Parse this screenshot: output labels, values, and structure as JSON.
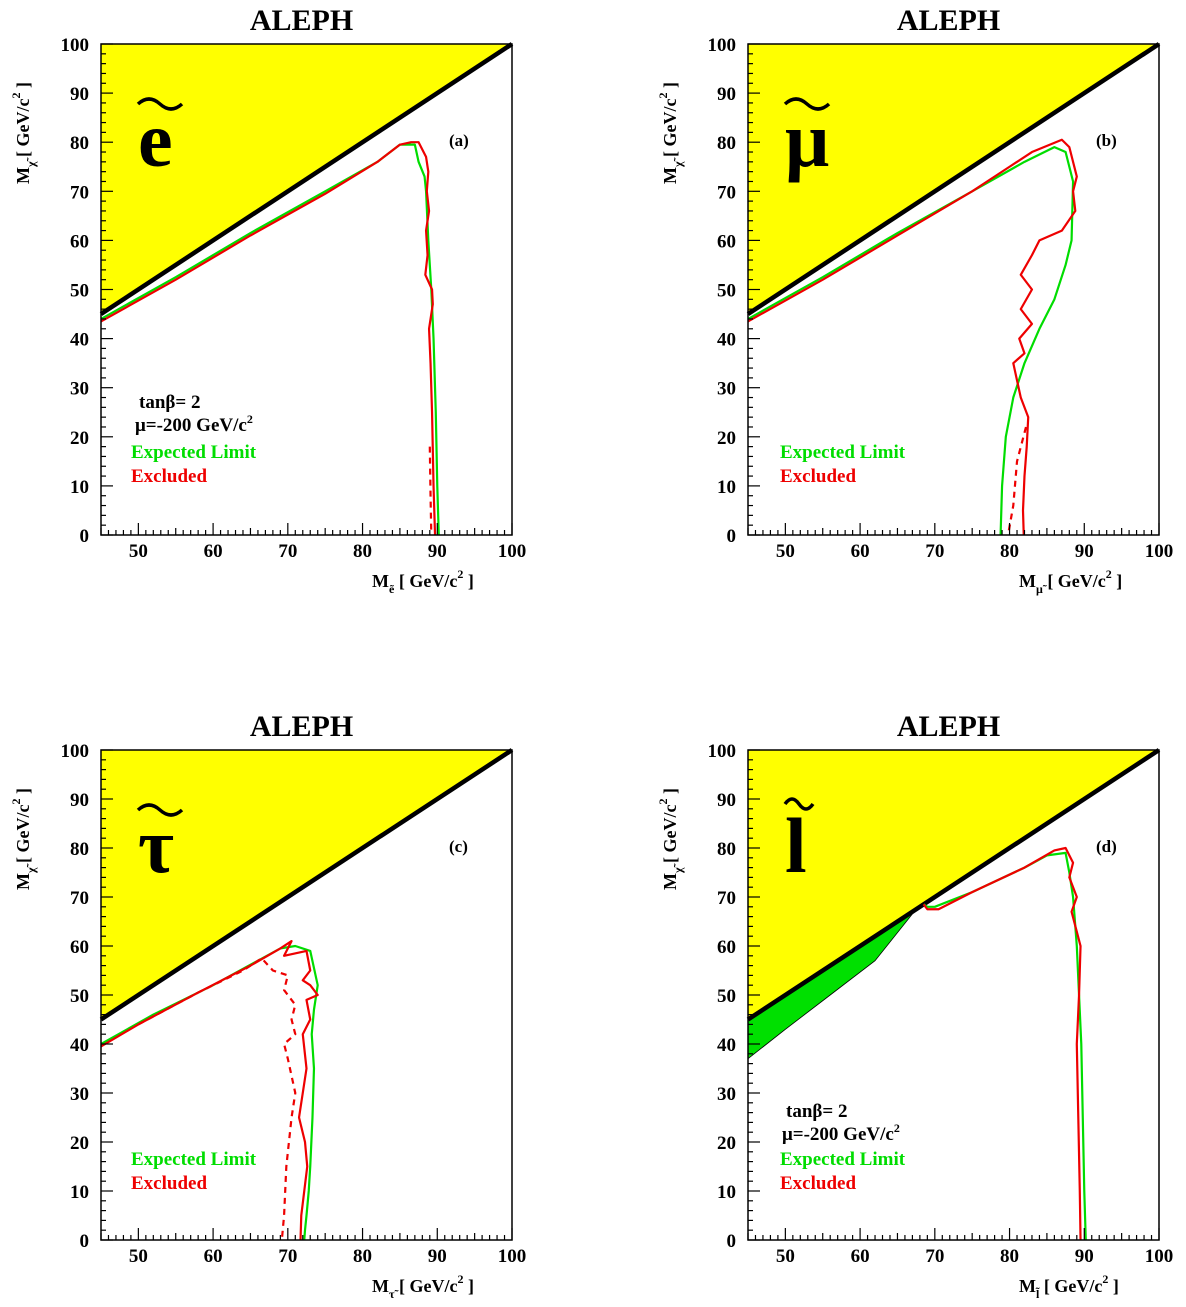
{
  "colors": {
    "kinematic_region": "#ffff00",
    "expected_limit": "#00dd00",
    "excluded": "#ee0000",
    "green_fill": "#00e000",
    "diagonal": "#000000"
  },
  "chart_data": [
    {
      "type": "line",
      "panel_label": "(a)",
      "title": "ALEPH",
      "particle_symbol": "e",
      "xlabel": {
        "main": "M",
        "sub": "ẽ",
        "unit": "[ GeV/c",
        "sup": "2",
        "close": " ]"
      },
      "ylabel": {
        "main": "M",
        "sub": "χ̃",
        "unit": "[ GeV/c",
        "sup": "2",
        "close": " ]"
      },
      "xlim": [
        45,
        100
      ],
      "ylim": [
        0,
        100
      ],
      "xticks": [
        "50",
        "60",
        "70",
        "80",
        "90",
        "100"
      ],
      "yticks": [
        "0",
        "10",
        "20",
        "30",
        "40",
        "50",
        "60",
        "70",
        "80",
        "90",
        "100"
      ],
      "annotations": [
        "tanβ= 2",
        "μ=-200 GeV/c²"
      ],
      "legend": [
        "Expected Limit",
        "Excluded"
      ],
      "series": [
        {
          "name": "Expected Limit",
          "style": "solid",
          "x": [
            45,
            55,
            65,
            75,
            82,
            85,
            87,
            87.5,
            88.3,
            88.5,
            88.8,
            89.2,
            89.5,
            89.8,
            90.0,
            90.2
          ],
          "y": [
            44,
            52.5,
            61.5,
            70,
            76,
            79.5,
            79.5,
            76,
            73,
            70,
            60,
            50,
            40,
            25,
            10,
            0
          ]
        },
        {
          "name": "Excluded",
          "style": "solid",
          "x": [
            45,
            55,
            65,
            75,
            82,
            85,
            86.5,
            87.5,
            88.5,
            88.8,
            88.6,
            88.9,
            88.5,
            88.7,
            88.4,
            89.3,
            89.4,
            88.9,
            89.1,
            89.3,
            89.5,
            89.7
          ],
          "y": [
            43.5,
            52,
            61,
            69.5,
            76,
            79.5,
            80,
            80,
            77,
            74,
            70,
            66,
            62,
            57,
            53,
            50,
            47,
            42,
            35,
            25,
            10,
            0
          ]
        },
        {
          "name": "Excluded",
          "style": "dashed",
          "x": [
            89.0,
            89.1,
            89.2
          ],
          "y": [
            18,
            8,
            0
          ]
        }
      ]
    },
    {
      "type": "line",
      "panel_label": "(b)",
      "title": "ALEPH",
      "particle_symbol": "μ",
      "xlabel": {
        "main": "M",
        "sub": "μ̃",
        "unit": "[ GeV/c",
        "sup": "2",
        "close": " ]"
      },
      "ylabel": {
        "main": "M",
        "sub": "χ̃",
        "unit": "[ GeV/c",
        "sup": "2",
        "close": " ]"
      },
      "xlim": [
        45,
        100
      ],
      "ylim": [
        0,
        100
      ],
      "xticks": [
        "50",
        "60",
        "70",
        "80",
        "90",
        "100"
      ],
      "yticks": [
        "0",
        "10",
        "20",
        "30",
        "40",
        "50",
        "60",
        "70",
        "80",
        "90",
        "100"
      ],
      "annotations": [],
      "legend": [
        "Expected Limit",
        "Excluded"
      ],
      "series": [
        {
          "name": "Expected Limit",
          "style": "solid",
          "x": [
            45,
            55,
            65,
            75,
            82,
            86,
            87.5,
            88.5,
            88.3,
            87.5,
            86,
            84,
            82,
            80.5,
            79.5,
            79,
            78.8
          ],
          "y": [
            44,
            52.5,
            61.5,
            70,
            76,
            79,
            78,
            72,
            60,
            55,
            48,
            42,
            35,
            28,
            20,
            10,
            0
          ]
        },
        {
          "name": "Excluded",
          "style": "solid",
          "x": [
            45,
            55,
            65,
            75,
            80,
            83,
            87,
            88,
            89,
            88.5,
            88.8,
            87,
            84,
            83,
            81.5,
            83,
            81.5,
            83,
            81.3,
            82,
            80.5,
            81.5,
            82.5,
            82.3,
            82.0,
            81.8,
            81.9
          ],
          "y": [
            43.5,
            52,
            61,
            70,
            75,
            78,
            80.5,
            79,
            73,
            70,
            66,
            62,
            60,
            57,
            53,
            50,
            46,
            43,
            40,
            37,
            35,
            28,
            24,
            18,
            12,
            5,
            0
          ]
        },
        {
          "name": "Excluded",
          "style": "dashed",
          "x": [
            82.2,
            81.0,
            80.5,
            79.8
          ],
          "y": [
            22,
            15,
            6,
            0
          ]
        }
      ]
    },
    {
      "type": "line",
      "panel_label": "(c)",
      "title": "ALEPH",
      "particle_symbol": "τ",
      "xlabel": {
        "main": "M",
        "sub": "τ̃",
        "unit": "[ GeV/c",
        "sup": "2",
        "close": " ]"
      },
      "ylabel": {
        "main": "M",
        "sub": "χ̃",
        "unit": "[ GeV/c",
        "sup": "2",
        "close": " ]"
      },
      "xlim": [
        45,
        100
      ],
      "ylim": [
        0,
        100
      ],
      "xticks": [
        "50",
        "60",
        "70",
        "80",
        "90",
        "100"
      ],
      "yticks": [
        "0",
        "10",
        "20",
        "30",
        "40",
        "50",
        "60",
        "70",
        "80",
        "90",
        "100"
      ],
      "annotations": [],
      "legend": [
        "Expected Limit",
        "Excluded"
      ],
      "series": [
        {
          "name": "Expected Limit",
          "style": "solid",
          "x": [
            45,
            52,
            60,
            66,
            69,
            71,
            73,
            74,
            73.5,
            73.2,
            73.5,
            73.3,
            73.0,
            72.8,
            72.5,
            72.3,
            72.2
          ],
          "y": [
            40,
            46,
            52,
            57,
            59.5,
            60,
            59,
            52,
            47,
            42,
            35,
            25,
            15,
            10,
            5,
            2,
            0
          ]
        },
        {
          "name": "Excluded",
          "style": "solid",
          "x": [
            45,
            50,
            58,
            65,
            69,
            70.5,
            69.5,
            72.5,
            73,
            72,
            73,
            74,
            72.5,
            73,
            72,
            72.5,
            71.5,
            72.3,
            72.6,
            72.2,
            71.8,
            71.7
          ],
          "y": [
            39.5,
            44,
            50.5,
            56,
            59.5,
            61,
            58,
            59,
            55,
            53,
            52,
            50,
            49,
            45,
            42,
            35,
            25,
            20,
            15,
            10,
            5,
            0
          ]
        },
        {
          "name": "Excluded",
          "style": "dashed",
          "x": [
            50,
            58,
            64,
            66.5,
            68,
            70,
            69.5,
            71,
            70.5,
            71,
            69.5,
            70,
            71,
            70.5,
            69.8,
            69.5,
            69.2
          ],
          "y": [
            44,
            50.5,
            55,
            57.5,
            55,
            54,
            51,
            48,
            45,
            42,
            40,
            37,
            30,
            25,
            15,
            5,
            0
          ]
        }
      ]
    },
    {
      "type": "line",
      "panel_label": "(d)",
      "title": "ALEPH",
      "particle_symbol": "l",
      "xlabel": {
        "main": "M",
        "sub": "l̃",
        "unit": "[ GeV/c",
        "sup": "2",
        "close": " ]"
      },
      "ylabel": {
        "main": "M",
        "sub": "χ̃",
        "unit": "[ GeV/c",
        "sup": "2",
        "close": " ]"
      },
      "xlim": [
        45,
        100
      ],
      "ylim": [
        0,
        100
      ],
      "xticks": [
        "50",
        "60",
        "70",
        "80",
        "90",
        "100"
      ],
      "yticks": [
        "0",
        "10",
        "20",
        "30",
        "40",
        "50",
        "60",
        "70",
        "80",
        "90",
        "100"
      ],
      "annotations": [
        "tanβ= 2",
        "μ=-200 GeV/c²"
      ],
      "legend": [
        "Expected Limit",
        "Excluded"
      ],
      "series": [
        {
          "name": "Expected Limit",
          "style": "solid",
          "x": [
            68.5,
            69,
            70,
            75,
            82,
            85,
            87.5,
            88.0,
            88.5,
            89.0,
            89.3,
            89.6,
            89.8,
            90.0,
            90.2
          ],
          "y": [
            68.5,
            68,
            68,
            71,
            76,
            78.5,
            79,
            75,
            70,
            60,
            50,
            40,
            25,
            10,
            0
          ]
        },
        {
          "name": "Excluded",
          "style": "solid",
          "x": [
            68.5,
            69,
            70.5,
            75,
            82,
            86,
            87.5,
            88.5,
            88,
            89,
            88.3,
            89.5,
            89.3,
            89.0,
            89.2,
            89.4,
            89.5
          ],
          "y": [
            68.5,
            67.5,
            67.5,
            71,
            76,
            79.5,
            80,
            77,
            74,
            70,
            67,
            60,
            50,
            40,
            25,
            10,
            0
          ]
        }
      ],
      "shaded_region": {
        "x": [
          45,
          50,
          56,
          62,
          67.5,
          67.5,
          45
        ],
        "y": [
          37,
          43,
          50,
          57,
          67.5,
          67.5,
          45
        ]
      }
    }
  ]
}
